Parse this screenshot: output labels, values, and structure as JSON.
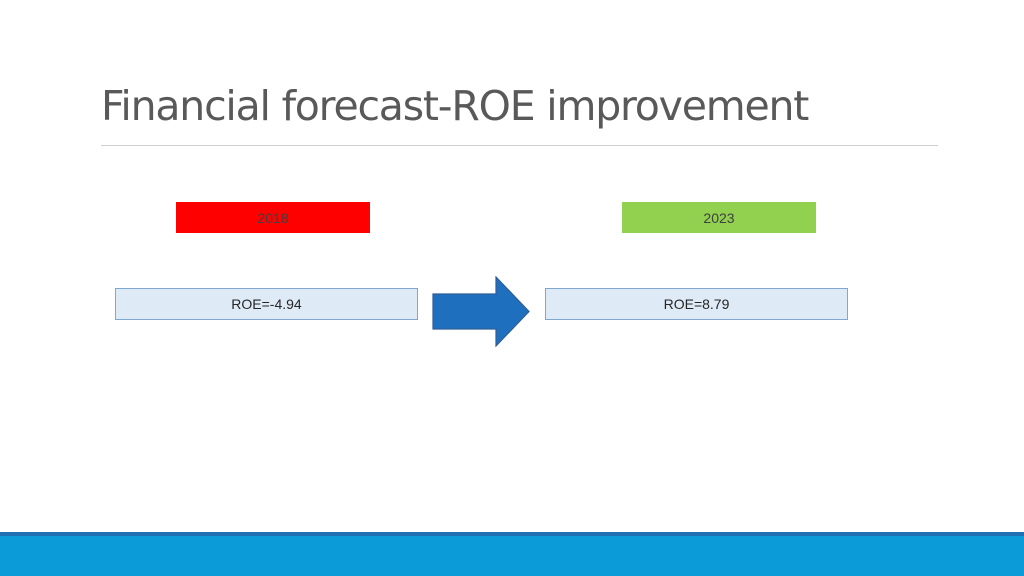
{
  "slide": {
    "title": "Financial forecast-ROE improvement"
  },
  "left": {
    "year": "2018",
    "year_color": "#ff0000",
    "roe": "ROE=-4.94"
  },
  "right": {
    "year": "2023",
    "year_color": "#92d050",
    "roe": "ROE=8.79"
  },
  "arrow": {
    "icon": "right-arrow-icon",
    "color": "#1f6fbf"
  },
  "footer": {
    "line_color": "#1f6fb2",
    "band_color": "#0a9bd8"
  }
}
